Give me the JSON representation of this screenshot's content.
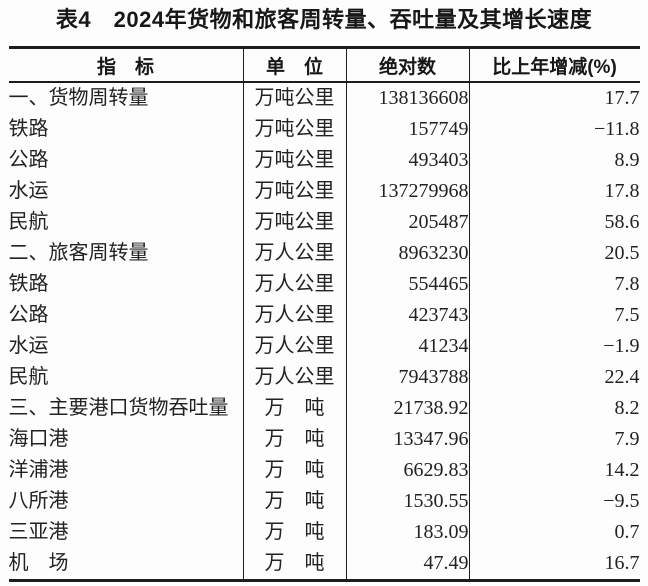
{
  "title": "表4　2024年货物和旅客周转量、吞吐量及其增长速度",
  "table": {
    "columns": [
      "指　标",
      "单　位",
      "绝对数",
      "比上年增减(%)"
    ],
    "rows": [
      [
        "一、货物周转量",
        "万吨公里",
        "138136608",
        "17.7"
      ],
      [
        "铁路",
        "万吨公里",
        "157749",
        "−11.8"
      ],
      [
        "公路",
        "万吨公里",
        "493403",
        "8.9"
      ],
      [
        "水运",
        "万吨公里",
        "137279968",
        "17.8"
      ],
      [
        "民航",
        "万吨公里",
        "205487",
        "58.6"
      ],
      [
        "二、旅客周转量",
        "万人公里",
        "8963230",
        "20.5"
      ],
      [
        "铁路",
        "万人公里",
        "554465",
        "7.8"
      ],
      [
        "公路",
        "万人公里",
        "423743",
        "7.5"
      ],
      [
        "水运",
        "万人公里",
        "41234",
        "−1.9"
      ],
      [
        "民航",
        "万人公里",
        "7943788",
        "22.4"
      ],
      [
        "三、主要港口货物吞吐量",
        "万　吨",
        "21738.92",
        "8.2"
      ],
      [
        "海口港",
        "万　吨",
        "13347.96",
        "7.9"
      ],
      [
        "洋浦港",
        "万　吨",
        "6629.83",
        "14.2"
      ],
      [
        "八所港",
        "万　吨",
        "1530.55",
        "−9.5"
      ],
      [
        "三亚港",
        "万　吨",
        "183.09",
        "0.7"
      ],
      [
        "机　场",
        "万　吨",
        "47.49",
        "16.7"
      ]
    ]
  }
}
